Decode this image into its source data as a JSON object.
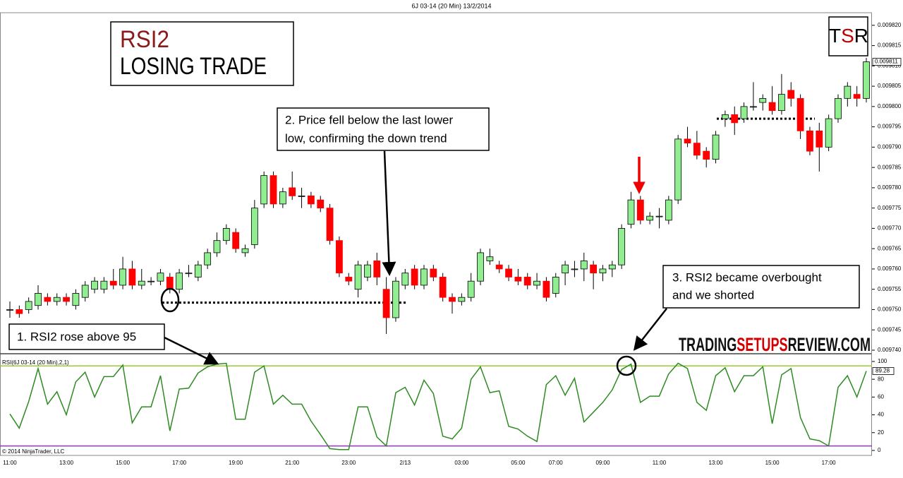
{
  "header": "6J 03-14 (20 Min)  13/2/2014",
  "copyright": "© 2014 NinjaTrader, LLC",
  "title_box": {
    "title": "RSI2",
    "subtitle": "LOSING TRADE"
  },
  "logo": [
    "T",
    "S",
    "R"
  ],
  "watermark": [
    "TRADING",
    "SETUPS",
    "REVIEW.COM"
  ],
  "annotations": [
    {
      "lines": [
        "2. Price fell below the last lower",
        "low, confirming the down trend"
      ]
    },
    {
      "lines": [
        "1. RSI2 rose above 95"
      ]
    },
    {
      "lines": [
        "3. RSI2 became overbought",
        "and we shorted"
      ]
    }
  ],
  "chart_data": [
    {
      "type": "candlestick",
      "up_color": "#90ee90",
      "down_color": "#ff0000",
      "categories": [
        "11:00",
        null,
        null,
        null,
        null,
        null,
        "13:00",
        null,
        null,
        null,
        null,
        null,
        "15:00",
        null,
        null,
        null,
        null,
        null,
        "17:00",
        null,
        null,
        null,
        null,
        null,
        "19:00",
        null,
        null,
        null,
        null,
        null,
        "21:00",
        null,
        null,
        null,
        null,
        null,
        "23:00",
        null,
        null,
        null,
        null,
        null,
        "2/13",
        null,
        null,
        null,
        null,
        null,
        "03:00",
        null,
        null,
        null,
        null,
        null,
        "05:00",
        null,
        null,
        null,
        "07:00",
        null,
        null,
        null,
        null,
        "09:00",
        null,
        null,
        null,
        null,
        null,
        "11:00",
        null,
        null,
        null,
        null,
        null,
        "13:00",
        null,
        null,
        null,
        null,
        null,
        "15:00",
        null,
        null,
        null,
        null,
        null,
        "17:00",
        null,
        null,
        null,
        null
      ],
      "open": [
        0.00975,
        0.00975,
        0.00975,
        0.009751,
        0.009753,
        0.009752,
        0.009753,
        0.009751,
        0.009753,
        0.009755,
        0.009755,
        0.009757,
        0.009756,
        0.00976,
        0.009756,
        0.009757,
        0.009757,
        0.009758,
        0.009755,
        0.009759,
        0.009758,
        0.009761,
        0.009764,
        0.009767,
        0.009769,
        0.009764,
        0.009766,
        0.009776,
        0.009783,
        0.009776,
        0.00978,
        0.009778,
        0.009778,
        0.009777,
        0.009775,
        0.009767,
        0.009758,
        0.009755,
        0.009758,
        0.009762,
        0.009755,
        0.009748,
        0.009756,
        0.00976,
        0.009756,
        0.00976,
        0.009758,
        0.009753,
        0.009752,
        0.009753,
        0.009757,
        0.009762,
        0.009761,
        0.00976,
        0.009758,
        0.009758,
        0.009756,
        0.009757,
        0.009754,
        0.009759,
        0.00976,
        0.00976,
        0.009761,
        0.009759,
        0.00976,
        0.009761,
        0.009771,
        0.009777,
        0.009772,
        0.009773,
        0.009772,
        0.009777,
        0.009792,
        0.009791,
        0.009789,
        0.009787,
        0.009797,
        0.009798,
        0.009797,
        0.0098,
        0.009801,
        0.009801,
        0.009799,
        0.009804,
        0.009802,
        0.009794,
        0.009794,
        0.00979,
        0.009797,
        0.009802,
        0.009803,
        0.009802
      ],
      "high": [
        0.009752,
        0.009751,
        0.009753,
        0.009756,
        0.009754,
        0.009754,
        0.009754,
        0.009755,
        0.009757,
        0.009758,
        0.009758,
        0.00976,
        0.009763,
        0.009762,
        0.00976,
        0.009758,
        0.00976,
        0.009759,
        0.00976,
        0.009761,
        0.009762,
        0.009765,
        0.009769,
        0.009771,
        0.00977,
        0.009766,
        0.009777,
        0.009784,
        0.009784,
        0.00978,
        0.009784,
        0.00978,
        0.009779,
        0.009778,
        0.009776,
        0.009768,
        0.009759,
        0.009762,
        0.009762,
        0.009764,
        0.009758,
        0.009758,
        0.00976,
        0.009761,
        0.009761,
        0.009761,
        0.009759,
        0.009754,
        0.009754,
        0.009759,
        0.009765,
        0.009765,
        0.009762,
        0.009761,
        0.00976,
        0.009759,
        0.009759,
        0.009758,
        0.009759,
        0.009762,
        0.009762,
        0.009764,
        0.009762,
        0.009761,
        0.009762,
        0.009771,
        0.009779,
        0.009778,
        0.009774,
        0.009775,
        0.009778,
        0.009793,
        0.009795,
        0.009794,
        0.00979,
        0.009794,
        0.009799,
        0.0098,
        0.009801,
        0.009806,
        0.009803,
        0.009805,
        0.009808,
        0.009806,
        0.009803,
        0.009795,
        0.009796,
        0.009798,
        0.009803,
        0.009806,
        0.009805,
        0.009812
      ],
      "low": [
        0.009748,
        0.009748,
        0.009749,
        0.00975,
        0.009751,
        0.009751,
        0.009751,
        0.00975,
        0.009752,
        0.009754,
        0.009754,
        0.009755,
        0.009755,
        0.009755,
        0.009755,
        0.009756,
        0.009756,
        0.009754,
        0.009754,
        0.009758,
        0.009757,
        0.00976,
        0.009763,
        0.009766,
        0.009764,
        0.009763,
        0.009765,
        0.009775,
        0.009775,
        0.009775,
        0.009777,
        0.009775,
        0.009775,
        0.009774,
        0.009766,
        0.009758,
        0.009756,
        0.009753,
        0.009757,
        0.009756,
        0.009744,
        0.009747,
        0.009755,
        0.009755,
        0.009755,
        0.009757,
        0.009752,
        0.009749,
        0.009751,
        0.009752,
        0.009756,
        0.009761,
        0.009759,
        0.009757,
        0.009756,
        0.009755,
        0.009755,
        0.009752,
        0.009753,
        0.009756,
        0.009758,
        0.009757,
        0.009755,
        0.009757,
        0.009758,
        0.00976,
        0.00977,
        0.009771,
        0.009771,
        0.00977,
        0.009771,
        0.009776,
        0.00979,
        0.009787,
        0.009785,
        0.009786,
        0.009795,
        0.009793,
        0.009796,
        0.009799,
        0.009799,
        0.009798,
        0.009798,
        0.0098,
        0.009792,
        0.009788,
        0.009784,
        0.009789,
        0.009796,
        0.0098,
        0.0098,
        0.009801
      ],
      "close": [
        0.00975,
        0.009749,
        0.009752,
        0.009754,
        0.009752,
        0.009753,
        0.009752,
        0.009754,
        0.009756,
        0.009757,
        0.009757,
        0.009756,
        0.00976,
        0.009756,
        0.009757,
        0.009757,
        0.009759,
        0.009755,
        0.009759,
        0.009759,
        0.009761,
        0.009764,
        0.009767,
        0.00977,
        0.009765,
        0.009765,
        0.009775,
        0.009783,
        0.009776,
        0.009779,
        0.009778,
        0.009778,
        0.009776,
        0.009775,
        0.009767,
        0.009759,
        0.009757,
        0.009761,
        0.009761,
        0.009758,
        0.009748,
        0.009757,
        0.009759,
        0.009756,
        0.00976,
        0.009758,
        0.009753,
        0.009752,
        0.009753,
        0.009757,
        0.009764,
        0.009763,
        0.00976,
        0.009758,
        0.009757,
        0.009756,
        0.009757,
        0.009753,
        0.009758,
        0.009761,
        0.00976,
        0.009762,
        0.009759,
        0.00976,
        0.009761,
        0.00977,
        0.009777,
        0.009772,
        0.009773,
        0.009773,
        0.009777,
        0.009792,
        0.009791,
        0.009788,
        0.009787,
        0.009793,
        0.009798,
        0.009796,
        0.0098,
        0.0098,
        0.009802,
        0.009799,
        0.009803,
        0.009802,
        0.009794,
        0.009789,
        0.00979,
        0.009797,
        0.009802,
        0.009805,
        0.009802,
        0.009811
      ],
      "ylim": [
        0.0097393,
        0.0098231
      ],
      "yticks": [
        {
          "value": 0.00982,
          "label": "0.009820"
        },
        {
          "value": 0.009815,
          "label": "0.009815"
        },
        {
          "value": 0.00981,
          "label": "0.009810"
        },
        {
          "value": 0.009805,
          "label": "0.009805"
        },
        {
          "value": 0.0098,
          "label": "0.009800"
        },
        {
          "value": 0.009795,
          "label": "0.009795"
        },
        {
          "value": 0.00979,
          "label": "0.009790"
        },
        {
          "value": 0.009785,
          "label": "0.009785"
        },
        {
          "value": 0.00978,
          "label": "0.009780"
        },
        {
          "value": 0.009775,
          "label": "0.009775"
        },
        {
          "value": 0.00977,
          "label": "0.009770"
        },
        {
          "value": 0.009765,
          "label": "0.009765"
        },
        {
          "value": 0.00976,
          "label": "0.009760"
        },
        {
          "value": 0.009755,
          "label": "0.009755"
        },
        {
          "value": 0.00975,
          "label": "0.009750"
        },
        {
          "value": 0.009745,
          "label": "0.009745"
        },
        {
          "value": 0.00974,
          "label": "0.009740"
        }
      ],
      "support_lines": [
        0.0097517,
        0.009797
      ]
    },
    {
      "type": "line",
      "title": "RSI(6J 03-14 (20 Min),2,1)",
      "color": "#2e8b22",
      "values": [
        41,
        25,
        55,
        92,
        52,
        66,
        40,
        77,
        88,
        60,
        83,
        83,
        96,
        31,
        49,
        49,
        84,
        22,
        69,
        70,
        87,
        94,
        97,
        98,
        35,
        35,
        88,
        95,
        52,
        62,
        52,
        52,
        33,
        18,
        2,
        1,
        1,
        49,
        49,
        15,
        5,
        65,
        71,
        51,
        79,
        64,
        16,
        13,
        25,
        80,
        94,
        65,
        67,
        27,
        24,
        16,
        10,
        74,
        84,
        62,
        81,
        32,
        43,
        54,
        68,
        91,
        97,
        54,
        61,
        61,
        86,
        98,
        92,
        54,
        45,
        84,
        93,
        66,
        84,
        84,
        94,
        30,
        85,
        92,
        37,
        13,
        11,
        5,
        71,
        84,
        60,
        89.28
      ],
      "ylim": [
        -5.6,
        107.9
      ],
      "yticks": [
        0,
        20,
        40,
        60,
        80,
        100
      ],
      "levels": [
        {
          "value": 95,
          "color": "#9acd32"
        },
        {
          "value": 5,
          "color": "#9932cc"
        }
      ]
    }
  ]
}
